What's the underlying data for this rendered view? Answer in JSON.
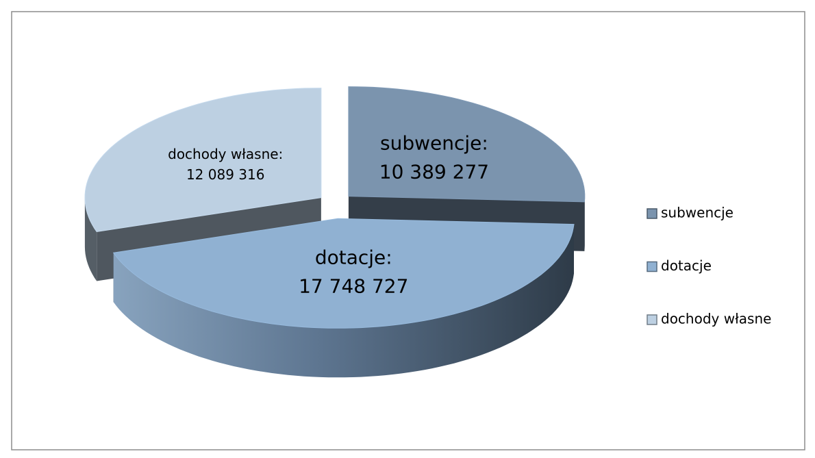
{
  "chart_data": {
    "type": "pie3d",
    "categories": [
      "subwencje",
      "dotacje",
      "dochody własne"
    ],
    "values": [
      10389277,
      17748727,
      12089316
    ],
    "value_labels": [
      "10 389 277",
      "17 748 727",
      "12 089 316"
    ],
    "data_label_names": [
      "subwencje:",
      "dotacje:",
      "dochody własne:"
    ],
    "colors": [
      "#7b94ae",
      "#90b1d2",
      "#bdd0e2"
    ],
    "legend": "right"
  }
}
